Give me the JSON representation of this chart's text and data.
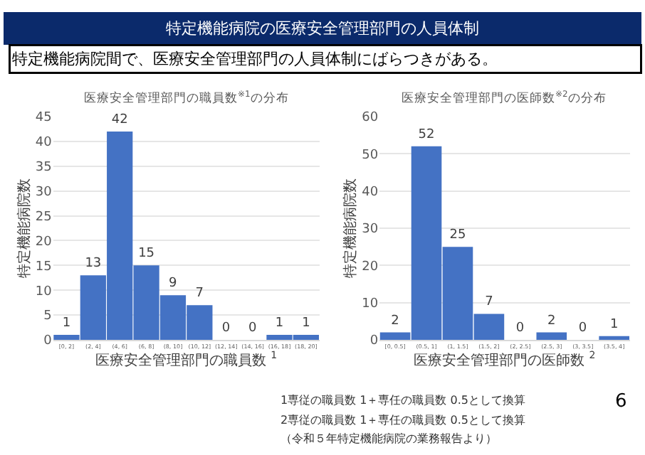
{
  "chart_data": [
    {
      "type": "bar",
      "title": "医療安全管理部門の職員数$^{※1}$の分布",
      "xlabel": "医療安全管理部門の職員数 $^{1}$",
      "ylabel": "特定機能病院数",
      "categories": [
        "[0, 2]",
        "(2, 4]",
        "(4, 6]",
        "(6, 8]",
        "(8, 10]",
        "(10, 12]",
        "(12, 14]",
        "(14, 16]",
        "(16, 18]",
        "(18, 20]"
      ],
      "values": [
        1,
        13,
        42,
        15,
        9,
        7,
        0,
        0,
        1,
        1
      ],
      "color": "#4472c4",
      "ylim": [
        0,
        45
      ],
      "yticks": [
        0,
        5,
        10,
        15,
        20,
        25,
        30,
        35,
        40,
        45
      ],
      "grid": "y",
      "data_labels": true,
      "annotations": [
        "特定機能病院の医療安全管理部門の人員体制",
        "特定機能病院間で、医療安全管理部門の人員体制にばらつきがある。"
      ]
    },
    {
      "type": "bar",
      "title": "医療安全管理部門の医師数$^{※2}$の分布",
      "xlabel": "医療安全管理部門の医師数 $^{2}$",
      "ylabel": "特定機能病院数",
      "categories": [
        "[0, 0.5]",
        "(0.5, 1]",
        "(1, 1.5]",
        "(1.5, 2]",
        "(2, 2.5]",
        "(2.5, 3]",
        "(3, 3.5]",
        "(3.5, 4]"
      ],
      "values": [
        2,
        52,
        25,
        7,
        0,
        2,
        0,
        1
      ],
      "color": "#4472c4",
      "ylim": [
        0,
        60
      ],
      "yticks": [
        0,
        10,
        20,
        30,
        40,
        50,
        60
      ],
      "grid": "y",
      "data_labels": true,
      "annotations": [
        "1専従の職員数 1＋専任の職員数 0.5として換算",
        "2専従の職員数 1＋専任の職員数 0.5として換算",
        "（令和５年特定機能病院の業務報告より）",
        "6"
      ]
    }
  ]
}
